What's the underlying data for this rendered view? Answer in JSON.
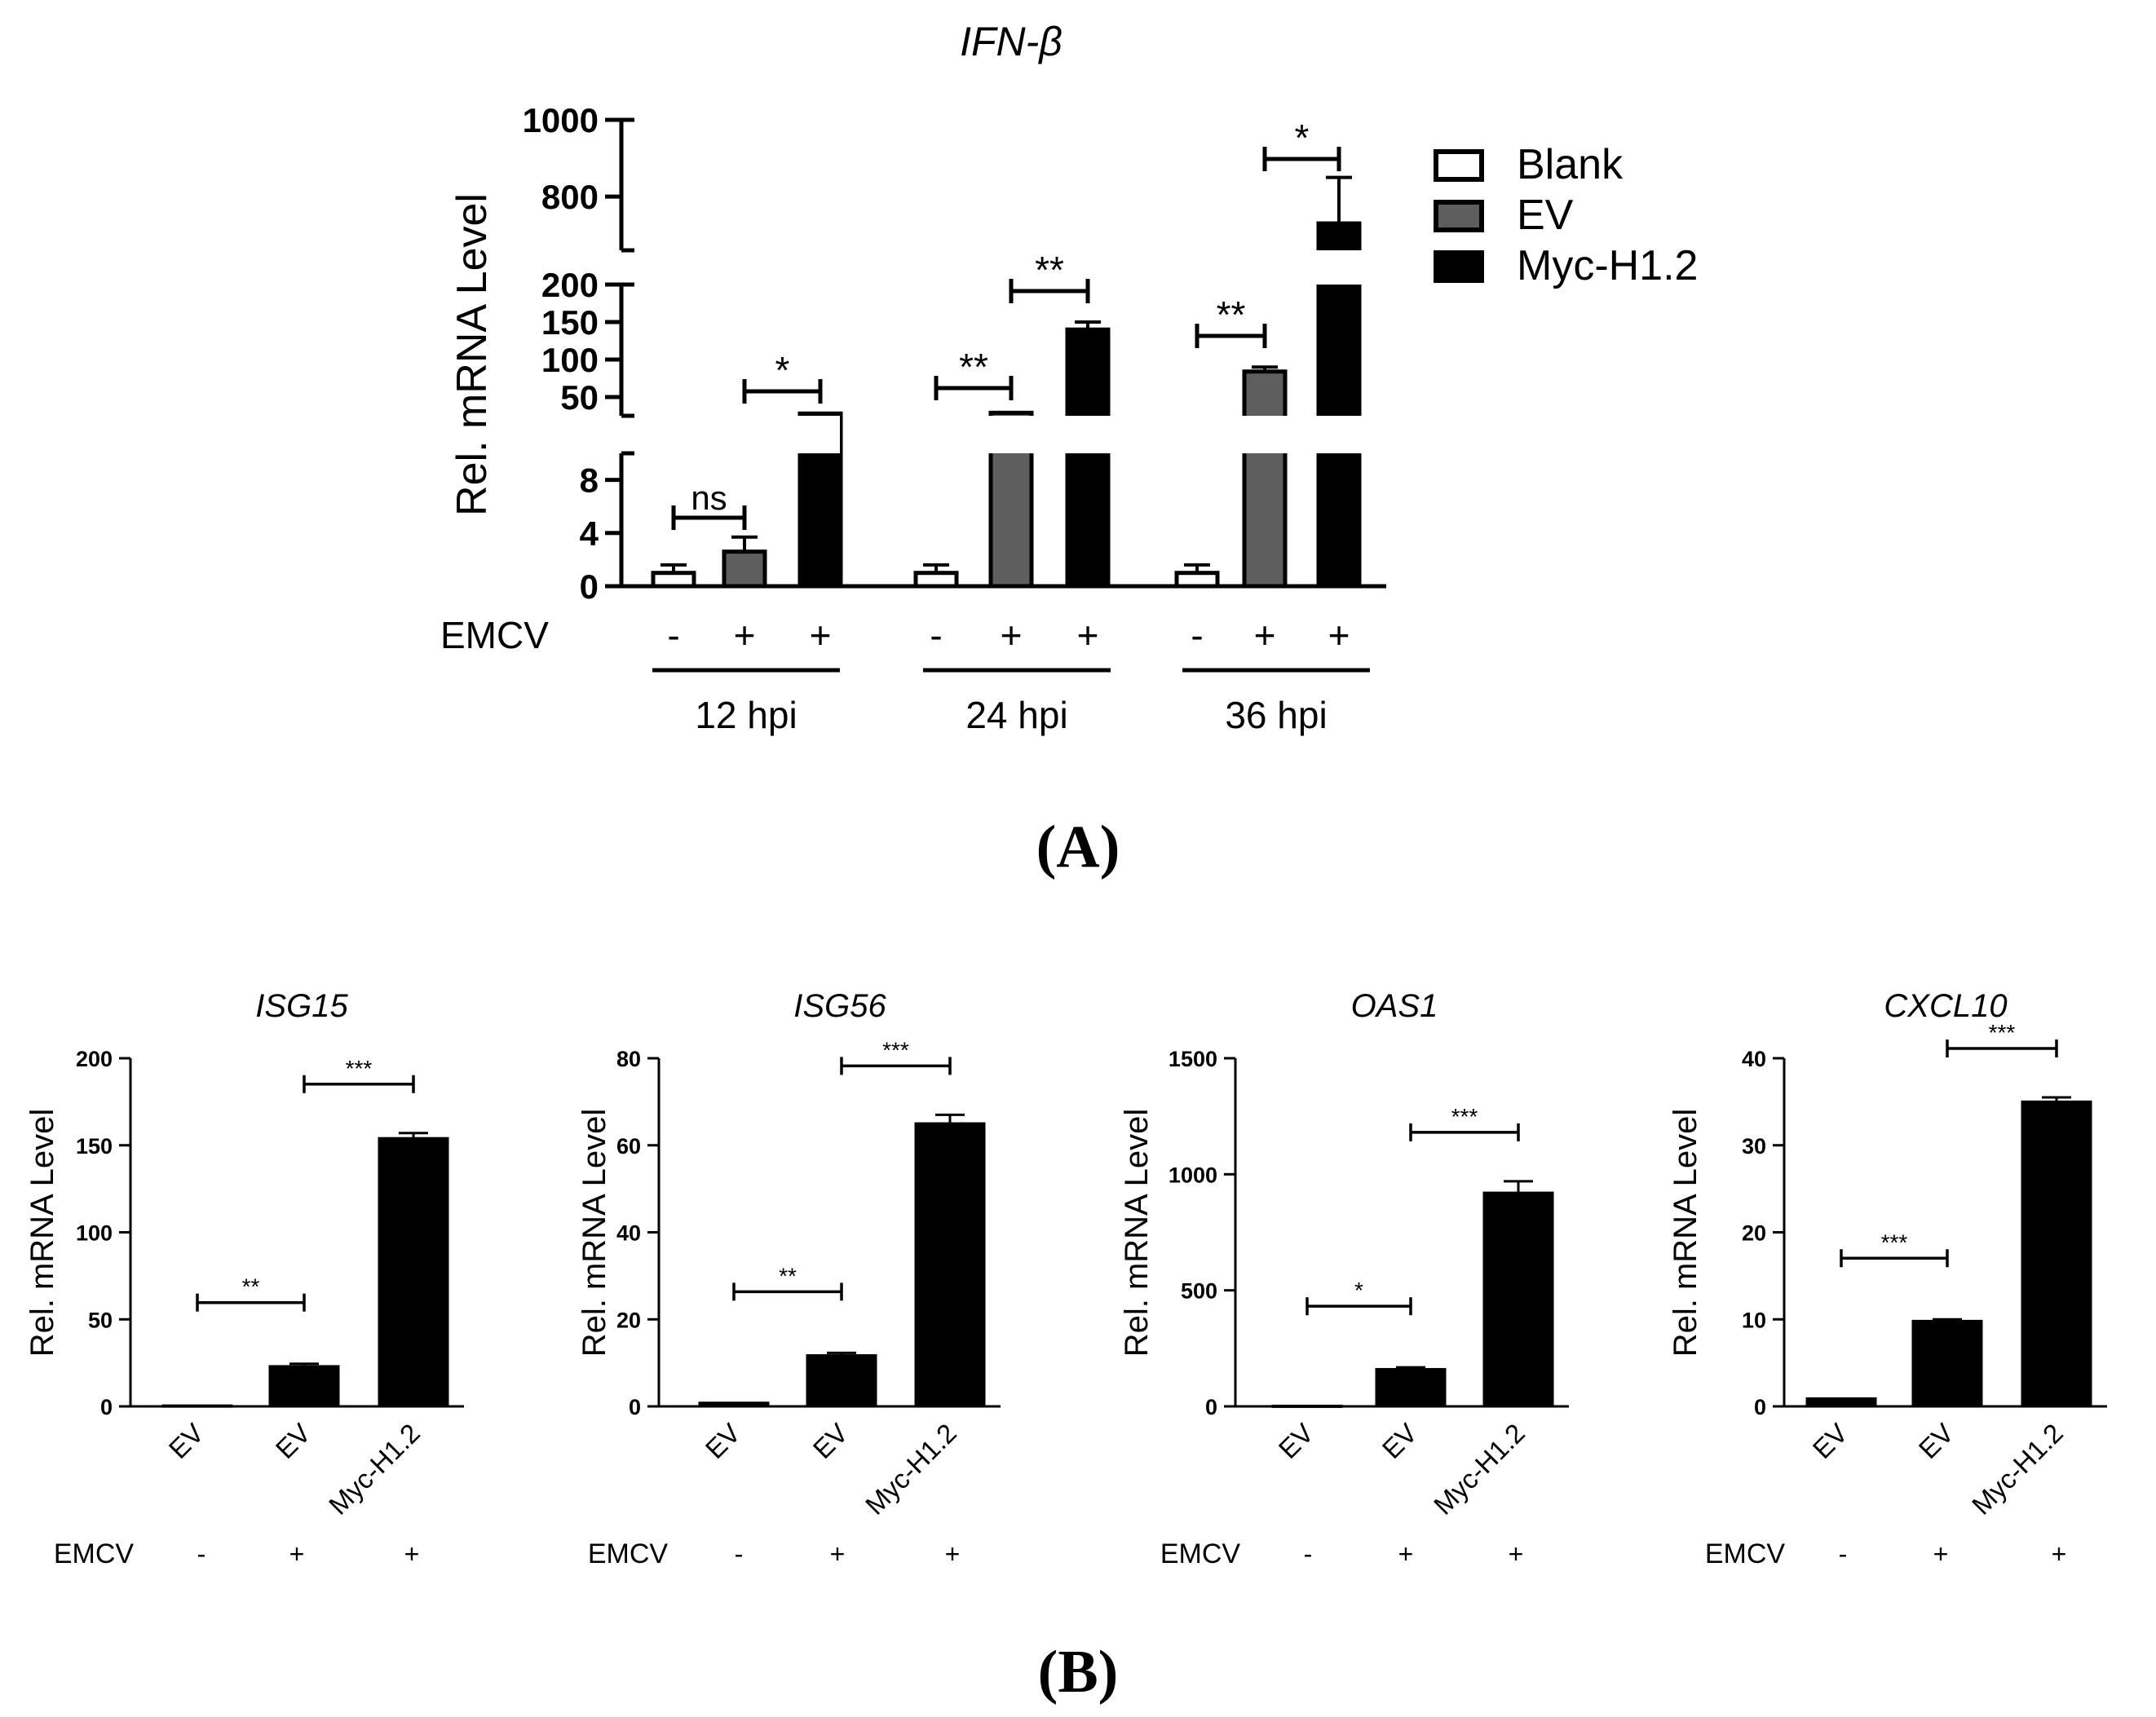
{
  "panel_labels": {
    "a": "(A)",
    "b": "(B)"
  },
  "colors": {
    "blank": "#ffffff",
    "ev": "#5e5e5e",
    "myc": "#000000",
    "ink": "#000000"
  },
  "chart_data": [
    {
      "type": "bar",
      "panel": "A",
      "title": "IFN-β",
      "ylabel": "Rel. mRNA Level",
      "axis_segments": [
        {
          "ylim": [
            0,
            10
          ],
          "ticks": [
            "0",
            "4",
            "8"
          ]
        },
        {
          "ylim": [
            25,
            200
          ],
          "ticks": [
            "50",
            "100",
            "150",
            "200"
          ]
        },
        {
          "ylim": [
            660,
            1000
          ],
          "ticks": [
            "800",
            "1000"
          ]
        }
      ],
      "legend": [
        "Blank",
        "EV",
        "Myc-H1.2"
      ],
      "legend_position": "right",
      "row_label": "EMCV",
      "groups": [
        {
          "label": "12 hpi",
          "emcv": [
            "-",
            "+",
            "+"
          ],
          "series": [
            "Blank",
            "EV",
            "Myc-H1.2"
          ],
          "values": [
            1,
            2.6,
            28
          ],
          "errors": [
            0.6,
            1.1,
            1.5
          ],
          "sig": [
            {
              "from": 0,
              "to": 1,
              "label": "ns"
            },
            {
              "from": 1,
              "to": 2,
              "label": "*"
            }
          ]
        },
        {
          "label": "24 hpi",
          "emcv": [
            "-",
            "+",
            "+"
          ],
          "series": [
            "Blank",
            "EV",
            "Myc-H1.2"
          ],
          "values": [
            1,
            29,
            140
          ],
          "errors": [
            0.6,
            2,
            10
          ],
          "sig": [
            {
              "from": 0,
              "to": 1,
              "label": "**"
            },
            {
              "from": 1,
              "to": 2,
              "label": "**"
            }
          ]
        },
        {
          "label": "36 hpi",
          "emcv": [
            "-",
            "+",
            "+"
          ],
          "series": [
            "Blank",
            "EV",
            "Myc-H1.2"
          ],
          "values": [
            1,
            84,
            730
          ],
          "errors": [
            0.6,
            6,
            120
          ],
          "sig": [
            {
              "from": 0,
              "to": 1,
              "label": "**"
            },
            {
              "from": 1,
              "to": 2,
              "label": "*"
            }
          ]
        }
      ]
    },
    {
      "type": "bar",
      "panel": "B",
      "title": "ISG15",
      "ylabel": "Rel. mRNA Level",
      "ylim": [
        0,
        200
      ],
      "ticks": [
        "0",
        "50",
        "100",
        "150",
        "200"
      ],
      "categories": [
        "EV",
        "EV",
        "Myc-H1.2"
      ],
      "row_label": "EMCV",
      "emcv": [
        "-",
        "+",
        "+"
      ],
      "values": [
        0.4,
        23,
        154
      ],
      "errors": [
        0,
        1.5,
        3
      ],
      "sig": [
        {
          "from": 0,
          "to": 1,
          "label": "**"
        },
        {
          "from": 1,
          "to": 2,
          "label": "***"
        }
      ]
    },
    {
      "type": "bar",
      "panel": "B",
      "title": "ISG56",
      "ylabel": "Rel. mRNA Level",
      "ylim": [
        0,
        80
      ],
      "ticks": [
        "0",
        "20",
        "40",
        "60",
        "80"
      ],
      "categories": [
        "EV",
        "EV",
        "Myc-H1.2"
      ],
      "row_label": "EMCV",
      "emcv": [
        "-",
        "+",
        "+"
      ],
      "values": [
        0.8,
        11.7,
        65
      ],
      "errors": [
        0,
        0.6,
        2
      ],
      "sig": [
        {
          "from": 0,
          "to": 1,
          "label": "**"
        },
        {
          "from": 1,
          "to": 2,
          "label": "***"
        }
      ]
    },
    {
      "type": "bar",
      "panel": "B",
      "title": "OAS1",
      "ylabel": "Rel. mRNA Level",
      "ylim": [
        0,
        1500
      ],
      "ticks": [
        "0",
        "500",
        "1000",
        "1500"
      ],
      "categories": [
        "EV",
        "EV",
        "Myc-H1.2"
      ],
      "row_label": "EMCV",
      "emcv": [
        "-",
        "+",
        "+"
      ],
      "values": [
        2,
        160,
        920
      ],
      "errors": [
        0,
        8,
        50
      ],
      "sig": [
        {
          "from": 0,
          "to": 1,
          "label": "*"
        },
        {
          "from": 1,
          "to": 2,
          "label": "***"
        }
      ]
    },
    {
      "type": "bar",
      "panel": "B",
      "title": "CXCL10",
      "ylabel": "Rel. mRNA Level",
      "ylim": [
        0,
        40
      ],
      "ticks": [
        "0",
        "10",
        "20",
        "30",
        "40"
      ],
      "categories": [
        "EV",
        "EV",
        "Myc-H1.2"
      ],
      "row_label": "EMCV",
      "emcv": [
        "-",
        "+",
        "+"
      ],
      "values": [
        0.9,
        9.8,
        35
      ],
      "errors": [
        0.1,
        0.2,
        0.5
      ],
      "sig": [
        {
          "from": 0,
          "to": 1,
          "label": "***"
        },
        {
          "from": 1,
          "to": 2,
          "label": "***"
        }
      ]
    }
  ]
}
